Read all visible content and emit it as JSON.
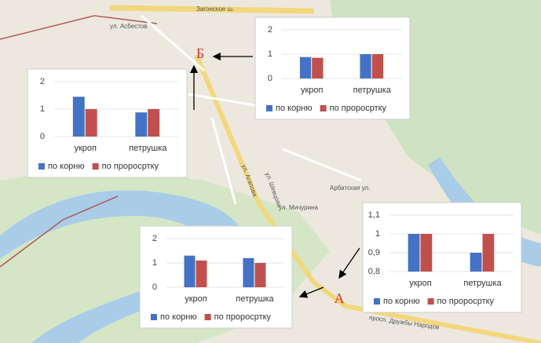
{
  "chart_data": [
    {
      "type": "bar",
      "categories": [
        "укроп",
        "петрушка"
      ],
      "ylim": [
        0,
        2
      ],
      "yticks": [
        0,
        1,
        2
      ],
      "series": [
        {
          "name": "по корню",
          "color": "#4472c4",
          "values": [
            0.88,
            1.0
          ]
        },
        {
          "name": "по проросртку",
          "color": "#c0504d",
          "values": [
            0.85,
            1.0
          ]
        }
      ]
    },
    {
      "type": "bar",
      "categories": [
        "укроп",
        "петрушка"
      ],
      "ylim": [
        0,
        2
      ],
      "yticks": [
        0,
        1,
        2
      ],
      "series": [
        {
          "name": "по корню",
          "color": "#4472c4",
          "values": [
            1.45,
            0.88
          ]
        },
        {
          "name": "по проросртку",
          "color": "#c0504d",
          "values": [
            1.0,
            1.0
          ]
        }
      ]
    },
    {
      "type": "bar",
      "categories": [
        "укроп",
        "петрушка"
      ],
      "ylim": [
        0,
        2
      ],
      "yticks": [
        0,
        1,
        2
      ],
      "series": [
        {
          "name": "по корню",
          "color": "#4472c4",
          "values": [
            1.3,
            1.2
          ]
        },
        {
          "name": "по проросртку",
          "color": "#c0504d",
          "values": [
            1.1,
            1.0
          ]
        }
      ]
    },
    {
      "type": "bar",
      "categories": [
        "укроп",
        "петрушка"
      ],
      "ylim": [
        0.8,
        1.1
      ],
      "yticks": [
        {
          "value": 0.8,
          "label": "0,8"
        },
        {
          "value": 0.9,
          "label": "0,9"
        },
        1,
        {
          "value": 1.1,
          "label": "1,1"
        }
      ],
      "series": [
        {
          "name": "по корню",
          "color": "#4472c4",
          "values": [
            1.0,
            0.9
          ]
        },
        {
          "name": "по проросртку",
          "color": "#c0504d",
          "values": [
            1.0,
            1.0
          ]
        }
      ]
    }
  ],
  "map": {
    "markers": [
      "Б",
      "А"
    ],
    "streets": [
      "Загонское ш.",
      "ул. Асбестов",
      "ул. Агапова",
      "Арбатская ул.",
      "просп. Дружбы Народов",
      "ул. Шевцова",
      "ул. Мичурина"
    ]
  }
}
